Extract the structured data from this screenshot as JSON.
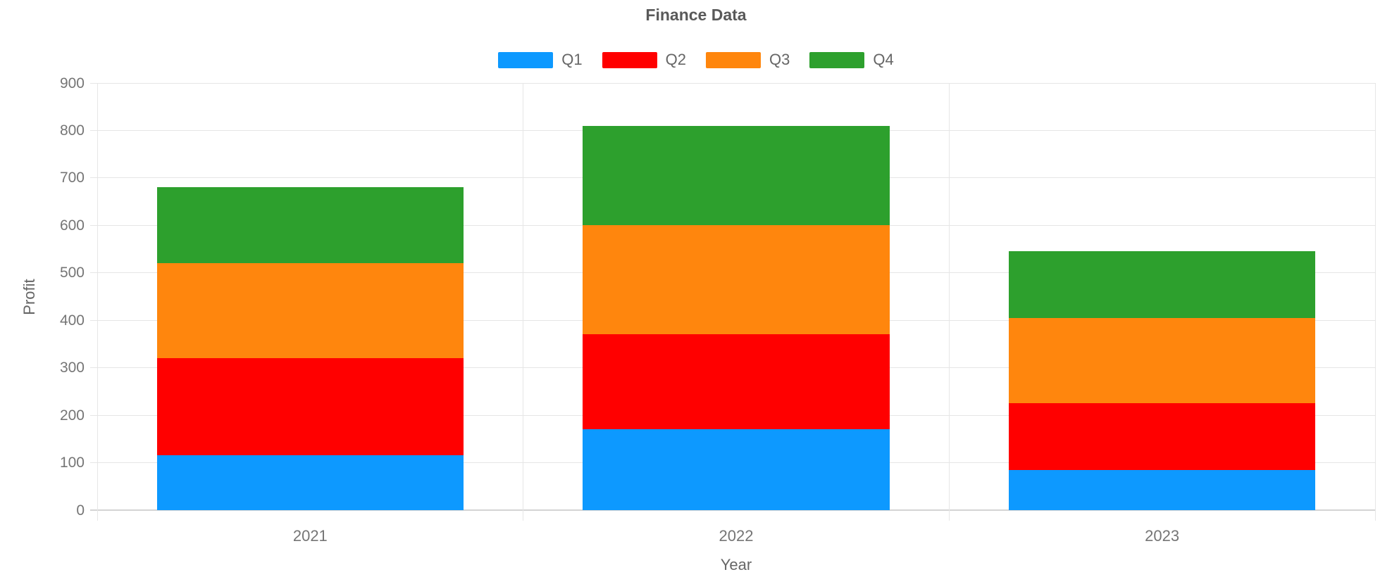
{
  "chart": {
    "title": "Finance Data",
    "x_axis_title": "Year",
    "y_axis_title": "Profit"
  },
  "chart_data": {
    "type": "bar",
    "stacked": true,
    "title": "Finance Data",
    "xlabel": "Year",
    "ylabel": "Profit",
    "categories": [
      "2021",
      "2022",
      "2023"
    ],
    "series": [
      {
        "name": "Q1",
        "color": "#0D99FF",
        "values": [
          115,
          170,
          85
        ]
      },
      {
        "name": "Q2",
        "color": "#FF0000",
        "values": [
          205,
          200,
          140
        ]
      },
      {
        "name": "Q3",
        "color": "#FF860D",
        "values": [
          200,
          230,
          180
        ]
      },
      {
        "name": "Q4",
        "color": "#2DA02D",
        "values": [
          160,
          210,
          140
        ]
      }
    ],
    "stack_totals": [
      680,
      810,
      545
    ],
    "ylim": [
      0,
      900
    ],
    "ytick_step": 100,
    "ytick_labels": [
      "0",
      "100",
      "200",
      "300",
      "400",
      "500",
      "600",
      "700",
      "800",
      "900"
    ],
    "grid": true,
    "legend_position": "top",
    "colors": {
      "grid_line": "#e6e6e6",
      "zero_line": "#d4d4d4",
      "title_text": "#595959",
      "tick_text": "#757575",
      "axis_title_text": "#666666"
    }
  }
}
